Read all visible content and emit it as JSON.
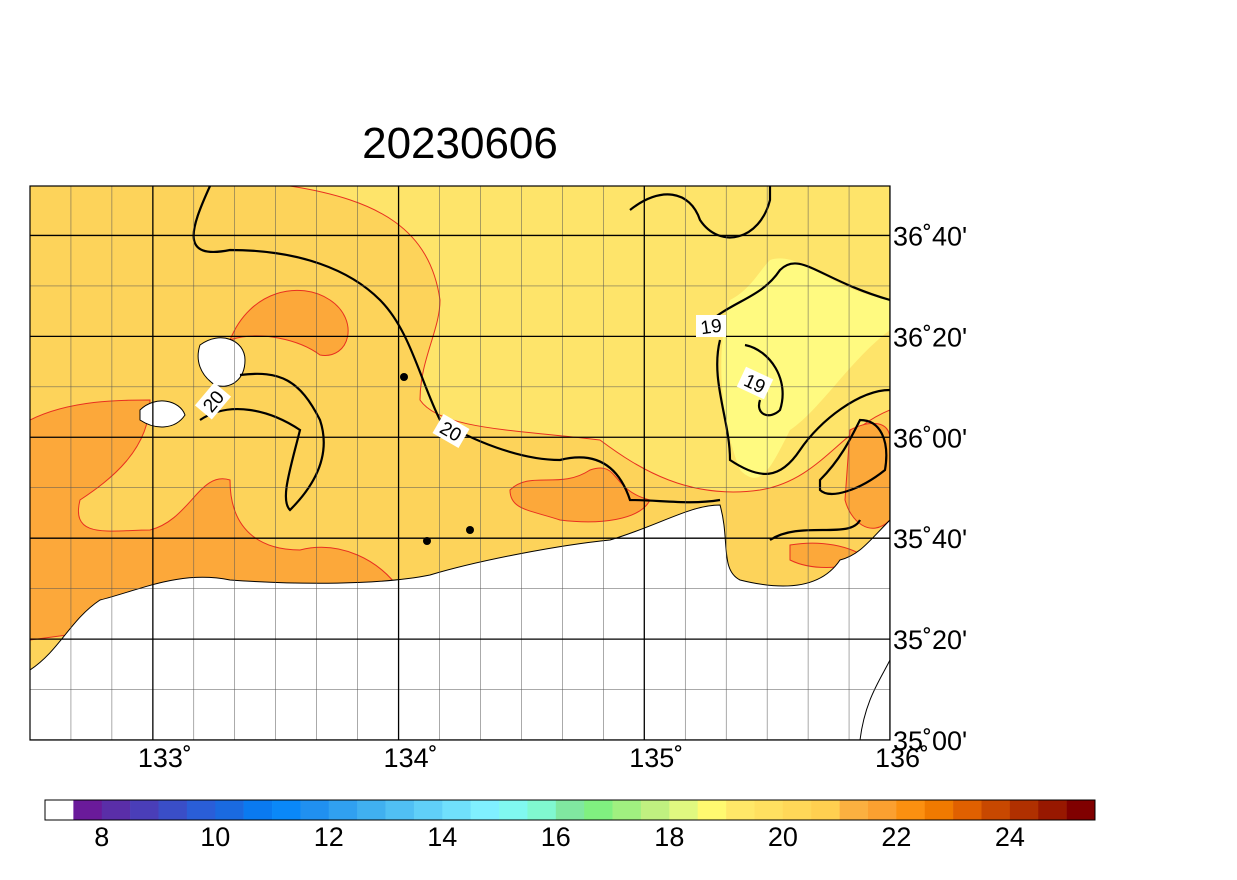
{
  "map": {
    "title": "20230606",
    "xlim": [
      132.5,
      136
    ],
    "ylim": [
      35,
      36.83
    ],
    "xticks": [
      {
        "value": 133,
        "label": "133˚"
      },
      {
        "value": 134,
        "label": "134˚"
      },
      {
        "value": 135,
        "label": "135˚"
      },
      {
        "value": 136,
        "label": "136˚"
      }
    ],
    "yticks": [
      {
        "value": 35,
        "label": "35˚00'"
      },
      {
        "value": 35.3333,
        "label": "35˚20'"
      },
      {
        "value": 35.6667,
        "label": "35˚40'"
      },
      {
        "value": 36,
        "label": "36˚00'"
      },
      {
        "value": 36.3333,
        "label": "36˚20'"
      },
      {
        "value": 36.6667,
        "label": "36˚40'"
      }
    ],
    "contour_labels": [
      "19",
      "19",
      "20",
      "20"
    ],
    "colorbar": {
      "range": [
        7,
        25.5
      ],
      "ticks": [
        8,
        10,
        12,
        14,
        16,
        18,
        20,
        22,
        24
      ],
      "colors": [
        "#ffffff",
        "#6a1a9a",
        "#5a2ea8",
        "#4a3eb8",
        "#3a4ec8",
        "#2a5ed8",
        "#1a6ae0",
        "#0a7af0",
        "#0a88f8",
        "#2090f0",
        "#30a0f0",
        "#40b0f0",
        "#50c0f4",
        "#60d0f8",
        "#70e0fc",
        "#80f0ff",
        "#80f8f0",
        "#80f8d0",
        "#80e8a0",
        "#80f080",
        "#a0f080",
        "#c0f080",
        "#e0f880",
        "#fffa70",
        "#ffe868",
        "#ffe060",
        "#ffd858",
        "#ffd050",
        "#fcb040",
        "#fca030",
        "#fc9010",
        "#f07a00",
        "#e06000",
        "#c84800",
        "#b03000",
        "#981800",
        "#800000"
      ]
    }
  }
}
